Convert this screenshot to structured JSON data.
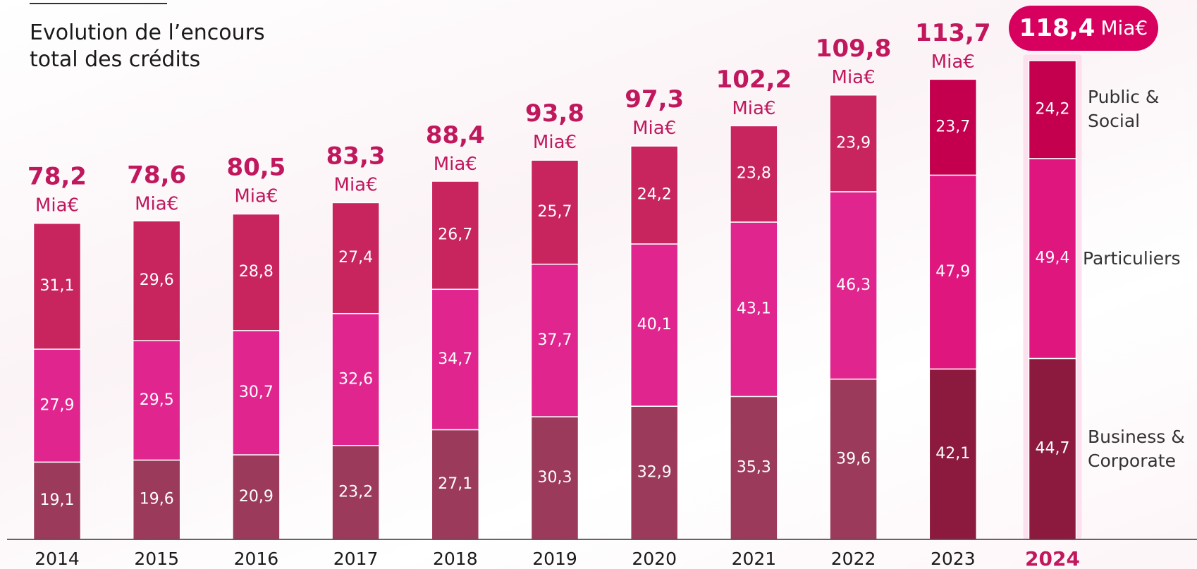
{
  "chart_data": {
    "type": "stacked_bar",
    "title": "Evolution de l’encours total des crédits",
    "unit": "Mia€",
    "categories": [
      "2014",
      "2015",
      "2016",
      "2017",
      "2018",
      "2019",
      "2020",
      "2021",
      "2022",
      "2023",
      "2024"
    ],
    "series": [
      {
        "name": "Business & Corporate",
        "colors": [
          "#9b3a5a",
          "#9b3a5a",
          "#9b3a5a",
          "#9b3a5a",
          "#9b3a5a",
          "#9b3a5a",
          "#9b3a5a",
          "#9b3a5a",
          "#9b3a5a",
          "#8b1a3e",
          "#8b1a3e"
        ],
        "values": [
          19.1,
          19.6,
          20.9,
          23.2,
          27.1,
          30.3,
          32.9,
          35.3,
          39.6,
          42.1,
          44.7
        ],
        "value_labels": [
          "19,1",
          "19,6",
          "20,9",
          "23,2",
          "27,1",
          "30,3",
          "32,9",
          "35,3",
          "39,6",
          "42,1",
          "44,7"
        ]
      },
      {
        "name": "Particuliers",
        "colors": [
          "#e0268e",
          "#e0268e",
          "#e0268e",
          "#e0268e",
          "#e0268e",
          "#e0268e",
          "#e0268e",
          "#e0268e",
          "#e0268e",
          "#e0167f",
          "#e0167f"
        ],
        "values": [
          27.9,
          29.5,
          30.7,
          32.6,
          34.7,
          37.7,
          40.1,
          43.1,
          46.3,
          47.9,
          49.4
        ],
        "value_labels": [
          "27,9",
          "29,5",
          "30,7",
          "32,6",
          "34,7",
          "37,7",
          "40,1",
          "43,1",
          "46,3",
          "47,9",
          "49,4"
        ]
      },
      {
        "name": "Public & Social",
        "colors": [
          "#c8245e",
          "#c8245e",
          "#c8245e",
          "#c8245e",
          "#c8245e",
          "#c8245e",
          "#c8245e",
          "#c8245e",
          "#c8245e",
          "#c4004e",
          "#c4004e"
        ],
        "values": [
          31.1,
          29.6,
          28.8,
          27.4,
          26.7,
          25.7,
          24.2,
          23.8,
          23.9,
          23.7,
          24.2
        ],
        "value_labels": [
          "31,1",
          "29,6",
          "28,8",
          "27,4",
          "26,7",
          "25,7",
          "24,2",
          "23,8",
          "23,9",
          "23,7",
          "24,2"
        ]
      }
    ],
    "totals": [
      78.2,
      78.6,
      80.5,
      83.3,
      88.4,
      93.8,
      97.3,
      102.2,
      109.8,
      113.7,
      118.4
    ],
    "total_labels": [
      "78,2",
      "78,6",
      "80,5",
      "83,3",
      "88,4",
      "93,8",
      "97,3",
      "102,2",
      "109,8",
      "113,7",
      "118,4"
    ]
  }
}
